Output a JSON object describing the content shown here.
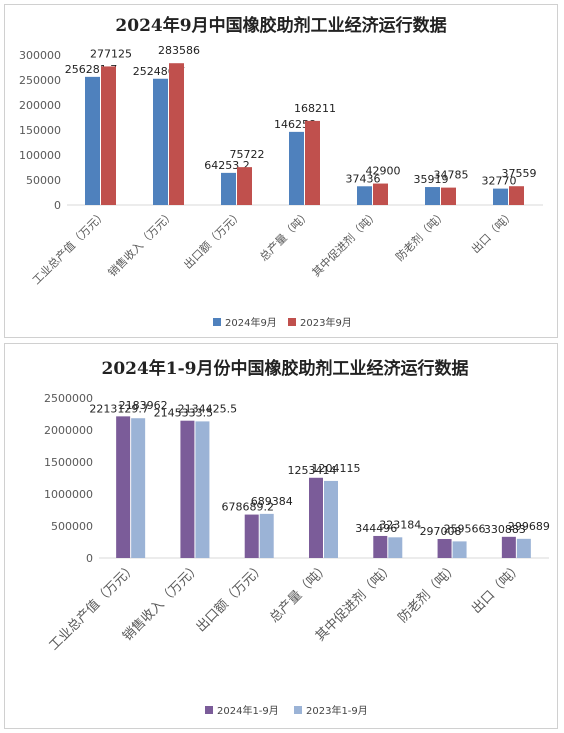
{
  "chart_data": [
    {
      "type": "bar",
      "title": "2024年9月中国橡胶助剂工业经济运行数据",
      "categories": [
        "工业总产值（万元）",
        "销售收入（万元）",
        "出口额（万元）",
        "总产量（吨）",
        "其中促进剂（吨）",
        "防老剂（吨）",
        "出口（吨）"
      ],
      "series": [
        {
          "name": "2024年9月",
          "color": "#4f81bd",
          "values": [
            256281.7,
            252486.7,
            64253.2,
            146258,
            37436,
            35919,
            32770
          ],
          "labels": [
            "256281.7",
            "252486.7",
            "64253.2",
            "146258",
            "37436",
            "35919",
            "32770"
          ]
        },
        {
          "name": "2023年9月",
          "color": "#c0504d",
          "values": [
            277125,
            283586,
            75722,
            168211,
            42900,
            34785,
            37559
          ],
          "labels": [
            "277125",
            "283586",
            "75722",
            "168211",
            "42900",
            "34785",
            "37559"
          ]
        }
      ],
      "yticks": [
        "0",
        "50000",
        "100000",
        "150000",
        "200000",
        "250000",
        "300000"
      ],
      "ylim": [
        0,
        300000
      ],
      "grid": false,
      "legend": "bottom"
    },
    {
      "type": "bar",
      "title": "2024年1-9月份中国橡胶助剂工业经济运行数据",
      "categories": [
        "工业总产值（万元）",
        "销售收入（万元）",
        "出口额（万元）",
        "总产量（吨）",
        "其中促进剂（吨）",
        "防老剂（吨）",
        "出口（吨）"
      ],
      "series": [
        {
          "name": "2024年1-9月",
          "color": "#7b5c99",
          "values": [
            2213129.7,
            2145333.5,
            678689.2,
            1253414,
            344496,
            297008,
            330883
          ],
          "labels": [
            "2213129.7",
            "2145333.5",
            "678689.2",
            "1253414",
            "344496",
            "297008",
            "330883"
          ]
        },
        {
          "name": "2023年1-9月",
          "color": "#9bb3d6",
          "values": [
            2183962,
            2134425.5,
            689384,
            1204115,
            323184,
            259566,
            299689
          ],
          "labels": [
            "2183962",
            "2134425.5",
            "689384",
            "1204115",
            "323184",
            "259566",
            "299689"
          ]
        }
      ],
      "yticks": [
        "0",
        "500000",
        "1000000",
        "1500000",
        "2000000",
        "2500000"
      ],
      "ylim": [
        0,
        2500000
      ],
      "grid": false,
      "legend": "bottom"
    }
  ]
}
